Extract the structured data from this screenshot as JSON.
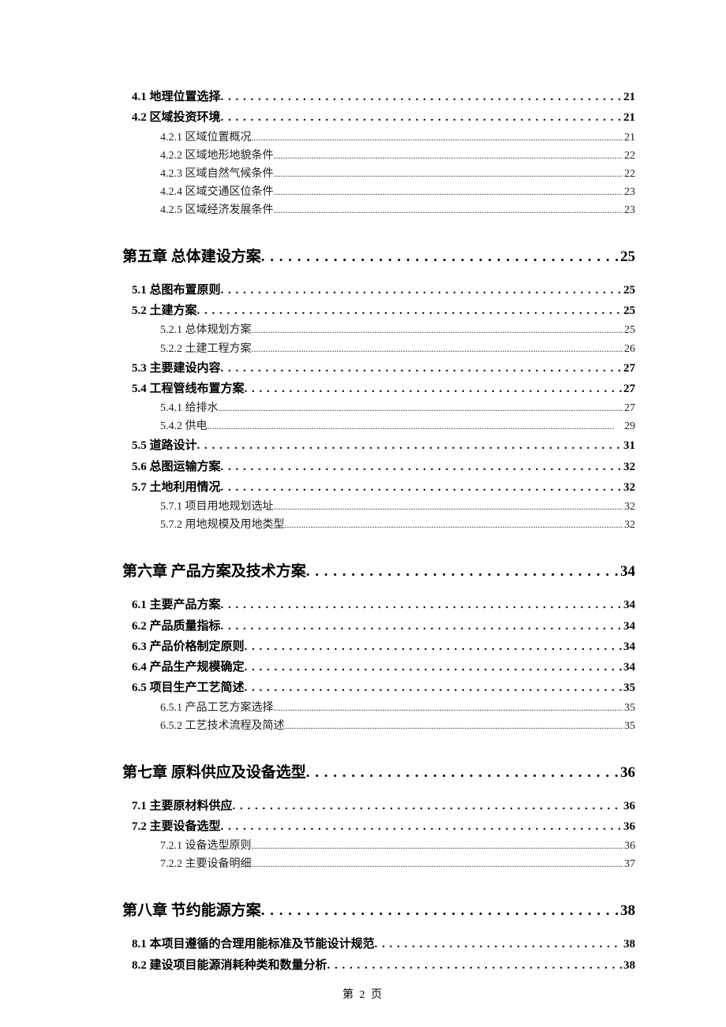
{
  "footer": "第 2 页",
  "leaders": {
    "lvl0": " . . . . . . . . . . . . . . . . . . . . . . . . . . . . . . . . . . . . . . . . . . . . . . . . . . . . . . . . . . . . . . . . . . . . . . . . . . . . . . . .",
    "lvl1": " . . . . . . . . . . . . . . . . . . . . . . . . . . . . . . . . . . . . . . . . . . . . . . . . . . . . . . . . . . . . . . . . . . . . . . . . . . . . . . . . . . . . . . . . . . .",
    "lvl2": "............................................................................................................................................................................"
  },
  "entries": [
    {
      "level": 1,
      "label": "4.1 地理位置选择",
      "page": "21"
    },
    {
      "level": 1,
      "label": "4.2 区域投资环境",
      "page": "21"
    },
    {
      "level": 2,
      "label": "4.2.1 区域位置概况",
      "page": "21"
    },
    {
      "level": 2,
      "label": "4.2.2 区域地形地貌条件",
      "page": "22"
    },
    {
      "level": 2,
      "label": "4.2.3 区域自然气候条件",
      "page": "22"
    },
    {
      "level": 2,
      "label": "4.2.4 区域交通区位条件",
      "page": "23"
    },
    {
      "level": 2,
      "label": "4.2.5 区域经济发展条件",
      "page": "23"
    },
    {
      "level": 0,
      "label": "第五章 总体建设方案",
      "page": "25"
    },
    {
      "level": 1,
      "label": "5.1 总图布置原则",
      "page": "25"
    },
    {
      "level": 1,
      "label": "5.2 土建方案",
      "page": "25"
    },
    {
      "level": 2,
      "label": "5.2.1 总体规划方案",
      "page": "25"
    },
    {
      "level": 2,
      "label": "5.2.2 土建工程方案",
      "page": "26"
    },
    {
      "level": 1,
      "label": "5.3 主要建设内容",
      "page": "27"
    },
    {
      "level": 1,
      "label": "5.4 工程管线布置方案",
      "page": "27"
    },
    {
      "level": 2,
      "label": "5.4.1 给排水",
      "page": "27"
    },
    {
      "level": 2,
      "label": "5.4.2 供电",
      "page": "29"
    },
    {
      "level": 1,
      "label": "5.5 道路设计",
      "page": "31"
    },
    {
      "level": 1,
      "label": "5.6 总图运输方案",
      "page": "32"
    },
    {
      "level": 1,
      "label": "5.7 土地利用情况",
      "page": "32"
    },
    {
      "level": 2,
      "label": "5.7.1 项目用地规划选址",
      "page": "32"
    },
    {
      "level": 2,
      "label": "5.7.2 用地规模及用地类型",
      "page": "32"
    },
    {
      "level": 0,
      "label": "第六章 产品方案及技术方案",
      "page": "34"
    },
    {
      "level": 1,
      "label": "6.1 主要产品方案",
      "page": "34"
    },
    {
      "level": 1,
      "label": "6.2 产品质量指标",
      "page": "34"
    },
    {
      "level": 1,
      "label": "6.3 产品价格制定原则",
      "page": "34"
    },
    {
      "level": 1,
      "label": "6.4 产品生产规模确定",
      "page": "34"
    },
    {
      "level": 1,
      "label": "6.5 项目生产工艺简述",
      "page": "35"
    },
    {
      "level": 2,
      "label": "6.5.1 产品工艺方案选择",
      "page": "35"
    },
    {
      "level": 2,
      "label": "6.5.2 工艺技术流程及简述",
      "page": "35"
    },
    {
      "level": 0,
      "label": "第七章 原料供应及设备选型",
      "page": "36"
    },
    {
      "level": 1,
      "label": "7.1 主要原材料供应",
      "page": "36"
    },
    {
      "level": 1,
      "label": "7.2 主要设备选型",
      "page": "36"
    },
    {
      "level": 2,
      "label": "7.2.1 设备选型原则",
      "page": "36"
    },
    {
      "level": 2,
      "label": "7.2.2 主要设备明细",
      "page": "37"
    },
    {
      "level": 0,
      "label": "第八章 节约能源方案",
      "page": "38"
    },
    {
      "level": 1,
      "label": "8.1 本项目遵循的合理用能标准及节能设计规范",
      "page": "38"
    },
    {
      "level": 1,
      "label": "8.2 建设项目能源消耗种类和数量分析",
      "page": "38"
    }
  ]
}
